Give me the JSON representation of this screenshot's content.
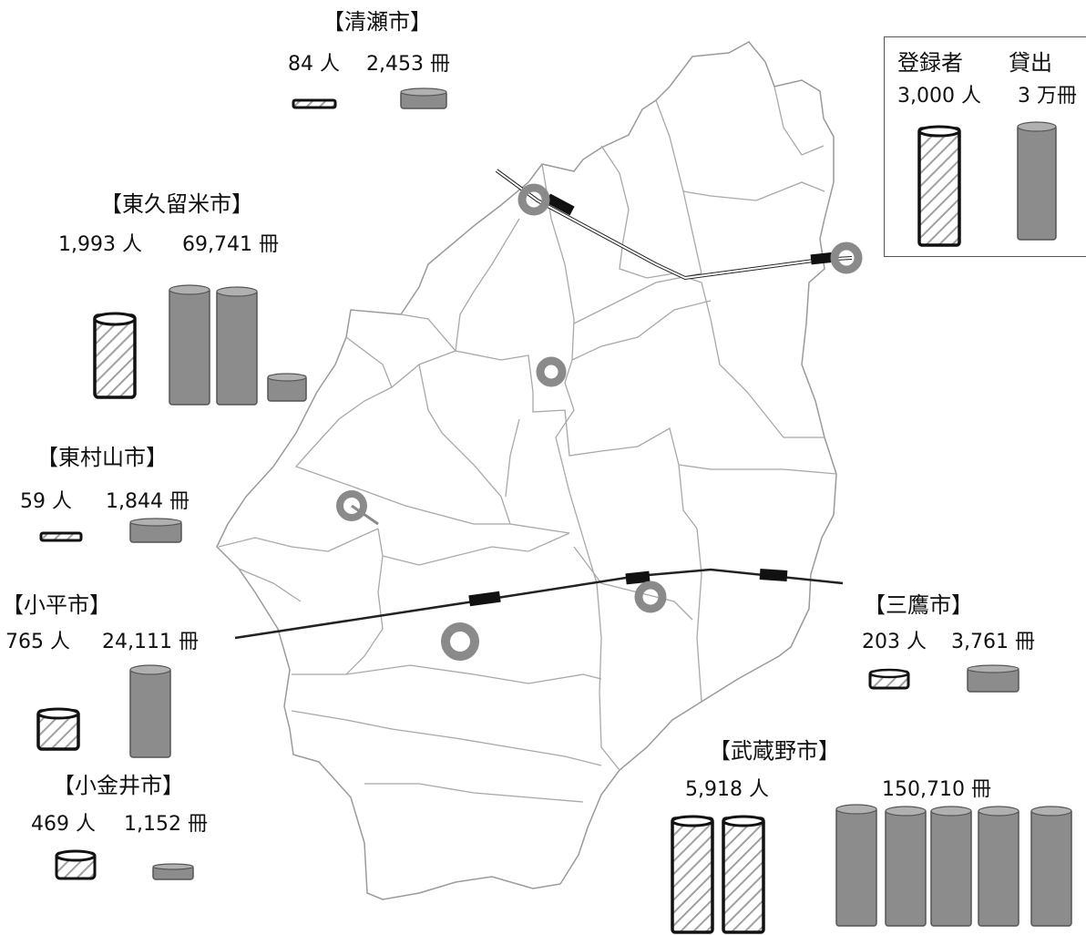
{
  "legend": {
    "registrants_label": "登録者",
    "loans_label": "貸出",
    "registrants_unit_value": "3,000 人",
    "loans_unit_value": "3 万冊"
  },
  "cities": [
    {
      "id": "kiyose",
      "name": "【清瀬市】",
      "registrants": "84 人",
      "loans": "2,453 冊"
    },
    {
      "id": "higashikurume",
      "name": "【東久留米市】",
      "registrants": "1,993 人",
      "loans": "69,741 冊"
    },
    {
      "id": "higashimurayama",
      "name": "【東村山市】",
      "registrants": "59 人",
      "loans": "1,844 冊"
    },
    {
      "id": "kodaira",
      "name": "【小平市】",
      "registrants": "765 人",
      "loans": "24,111 冊"
    },
    {
      "id": "koganei",
      "name": "【小金井市】",
      "registrants": "469 人",
      "loans": "1,152 冊"
    },
    {
      "id": "mitaka",
      "name": "【三鷹市】",
      "registrants": "203 人",
      "loans": "3,761 冊"
    },
    {
      "id": "musashino",
      "name": "【武蔵野市】",
      "registrants": "5,918 人",
      "loans": "150,710 冊"
    }
  ],
  "colors": {
    "map_line": "#9a9a9a",
    "cylinder_gray": "#8c8c8c",
    "cylinder_gray_top": "#b0b0b0",
    "hatch": "#9a9a9a",
    "library_marker": "#8a8a8a"
  }
}
